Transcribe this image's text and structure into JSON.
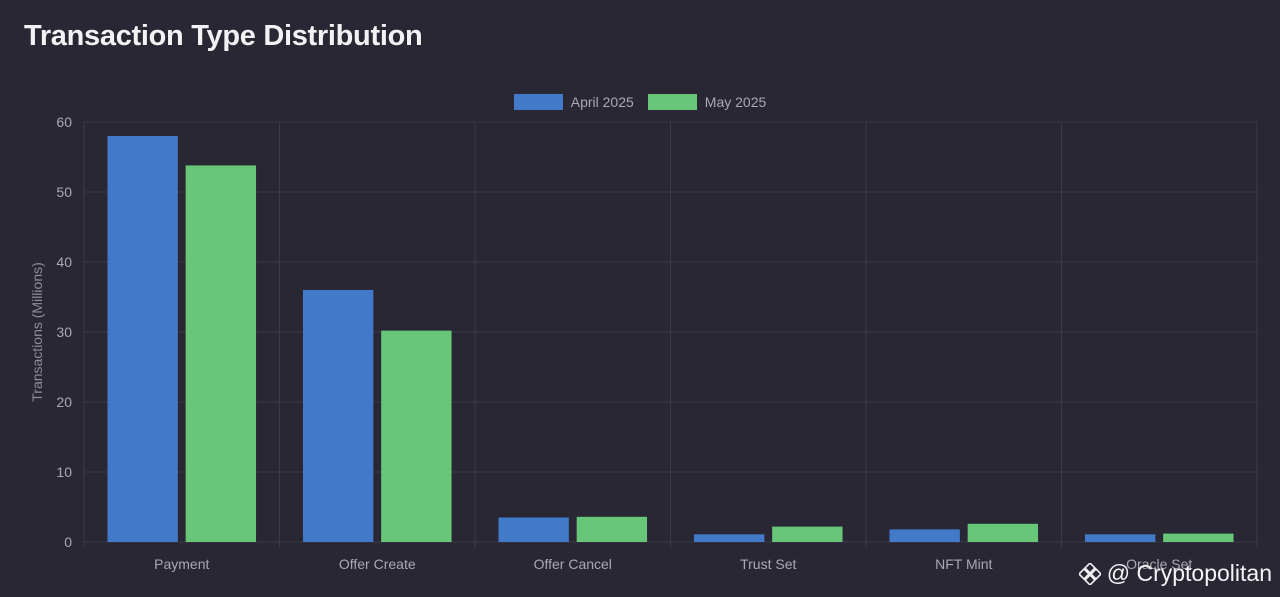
{
  "title": "Transaction Type Distribution",
  "watermark": {
    "text": "@ Cryptopolitan",
    "icon": "binance-logo-icon"
  },
  "colors": {
    "background": "#282733",
    "grid": "#3b3a47",
    "april": "#4279c8",
    "may": "#68c679"
  },
  "chart_data": {
    "type": "bar",
    "categories": [
      "Payment",
      "Offer Create",
      "Offer Cancel",
      "Trust Set",
      "NFT Mint",
      "Oracle Set"
    ],
    "series": [
      {
        "name": "April 2025",
        "values": [
          58,
          36,
          3.5,
          1.1,
          1.8,
          1.1
        ]
      },
      {
        "name": "May 2025",
        "values": [
          53.8,
          30.2,
          3.6,
          2.2,
          2.6,
          1.2
        ]
      }
    ],
    "title": "Transaction Type Distribution",
    "xlabel": "",
    "ylabel": "Transactions (Millions)",
    "ylim": [
      0,
      60
    ],
    "yticks": [
      0,
      10,
      20,
      30,
      40,
      50,
      60
    ],
    "grid": true,
    "legend": "top-center"
  }
}
